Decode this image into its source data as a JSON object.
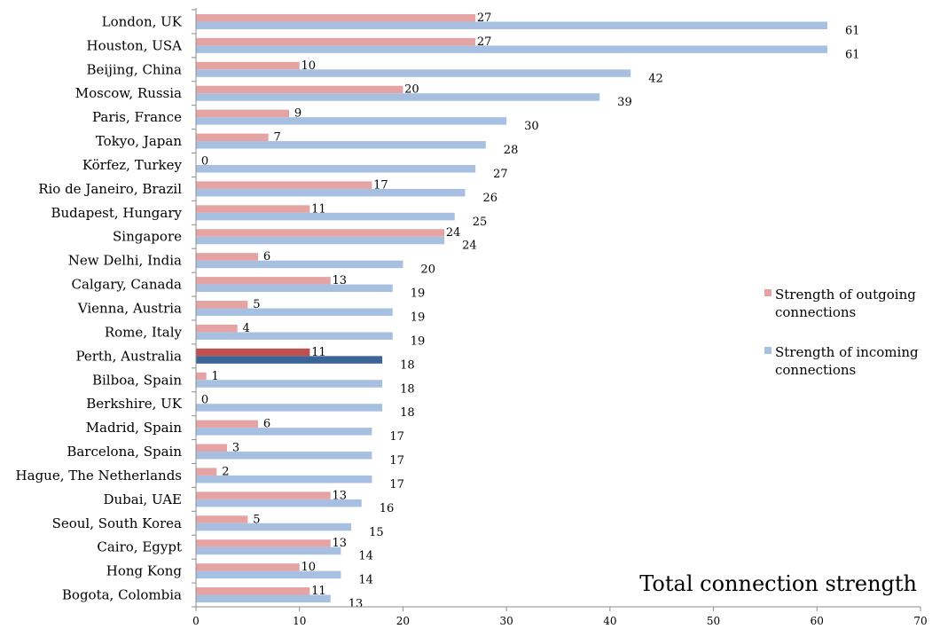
{
  "chart_data": {
    "type": "bar",
    "orientation": "horizontal",
    "title": "",
    "annotation": "Total connection strength",
    "xlabel": "",
    "ylabel": "",
    "xlim": [
      0,
      70
    ],
    "x_ticks": [
      0,
      10,
      20,
      30,
      40,
      50,
      60,
      70
    ],
    "grid": false,
    "legend_position": "right",
    "categories": [
      "London, UK",
      "Houston, USA",
      "Beijing, China",
      "Moscow, Russia",
      "Paris, France",
      "Tokyo, Japan",
      "Körfez, Turkey",
      "Rio de Janeiro, Brazil",
      "Budapest, Hungary",
      "Singapore",
      "New Delhi, India",
      "Calgary, Canada",
      "Vienna, Austria",
      "Rome, Italy",
      "Perth, Australia",
      "Bilboa, Spain",
      "Berkshire, UK",
      "Madrid, Spain",
      "Barcelona, Spain",
      "Hague, The Netherlands",
      "Dubai, UAE",
      "Seoul, South Korea",
      "Cairo, Egypt",
      "Hong Kong",
      "Bogota, Colombia"
    ],
    "series": [
      {
        "name": "Strength of outgoing connections",
        "color": "#e6a3a3",
        "values": [
          27,
          27,
          10,
          20,
          9,
          7,
          0,
          17,
          11,
          24,
          6,
          13,
          5,
          4,
          11,
          1,
          0,
          6,
          3,
          2,
          13,
          5,
          13,
          10,
          11
        ]
      },
      {
        "name": "Strength of incoming connections",
        "color": "#a7c0e1",
        "values": [
          61,
          61,
          42,
          39,
          30,
          28,
          27,
          26,
          25,
          24,
          20,
          19,
          19,
          19,
          18,
          18,
          18,
          17,
          17,
          17,
          16,
          15,
          14,
          14,
          13
        ]
      }
    ],
    "highlight": {
      "category": "Perth, Australia",
      "outgoing_color": "#c0504d",
      "incoming_color": "#3c6597"
    },
    "legend_lines": [
      [
        "Strength of outgoing",
        "connections"
      ],
      [
        "Strength of incoming",
        "connections"
      ]
    ]
  }
}
